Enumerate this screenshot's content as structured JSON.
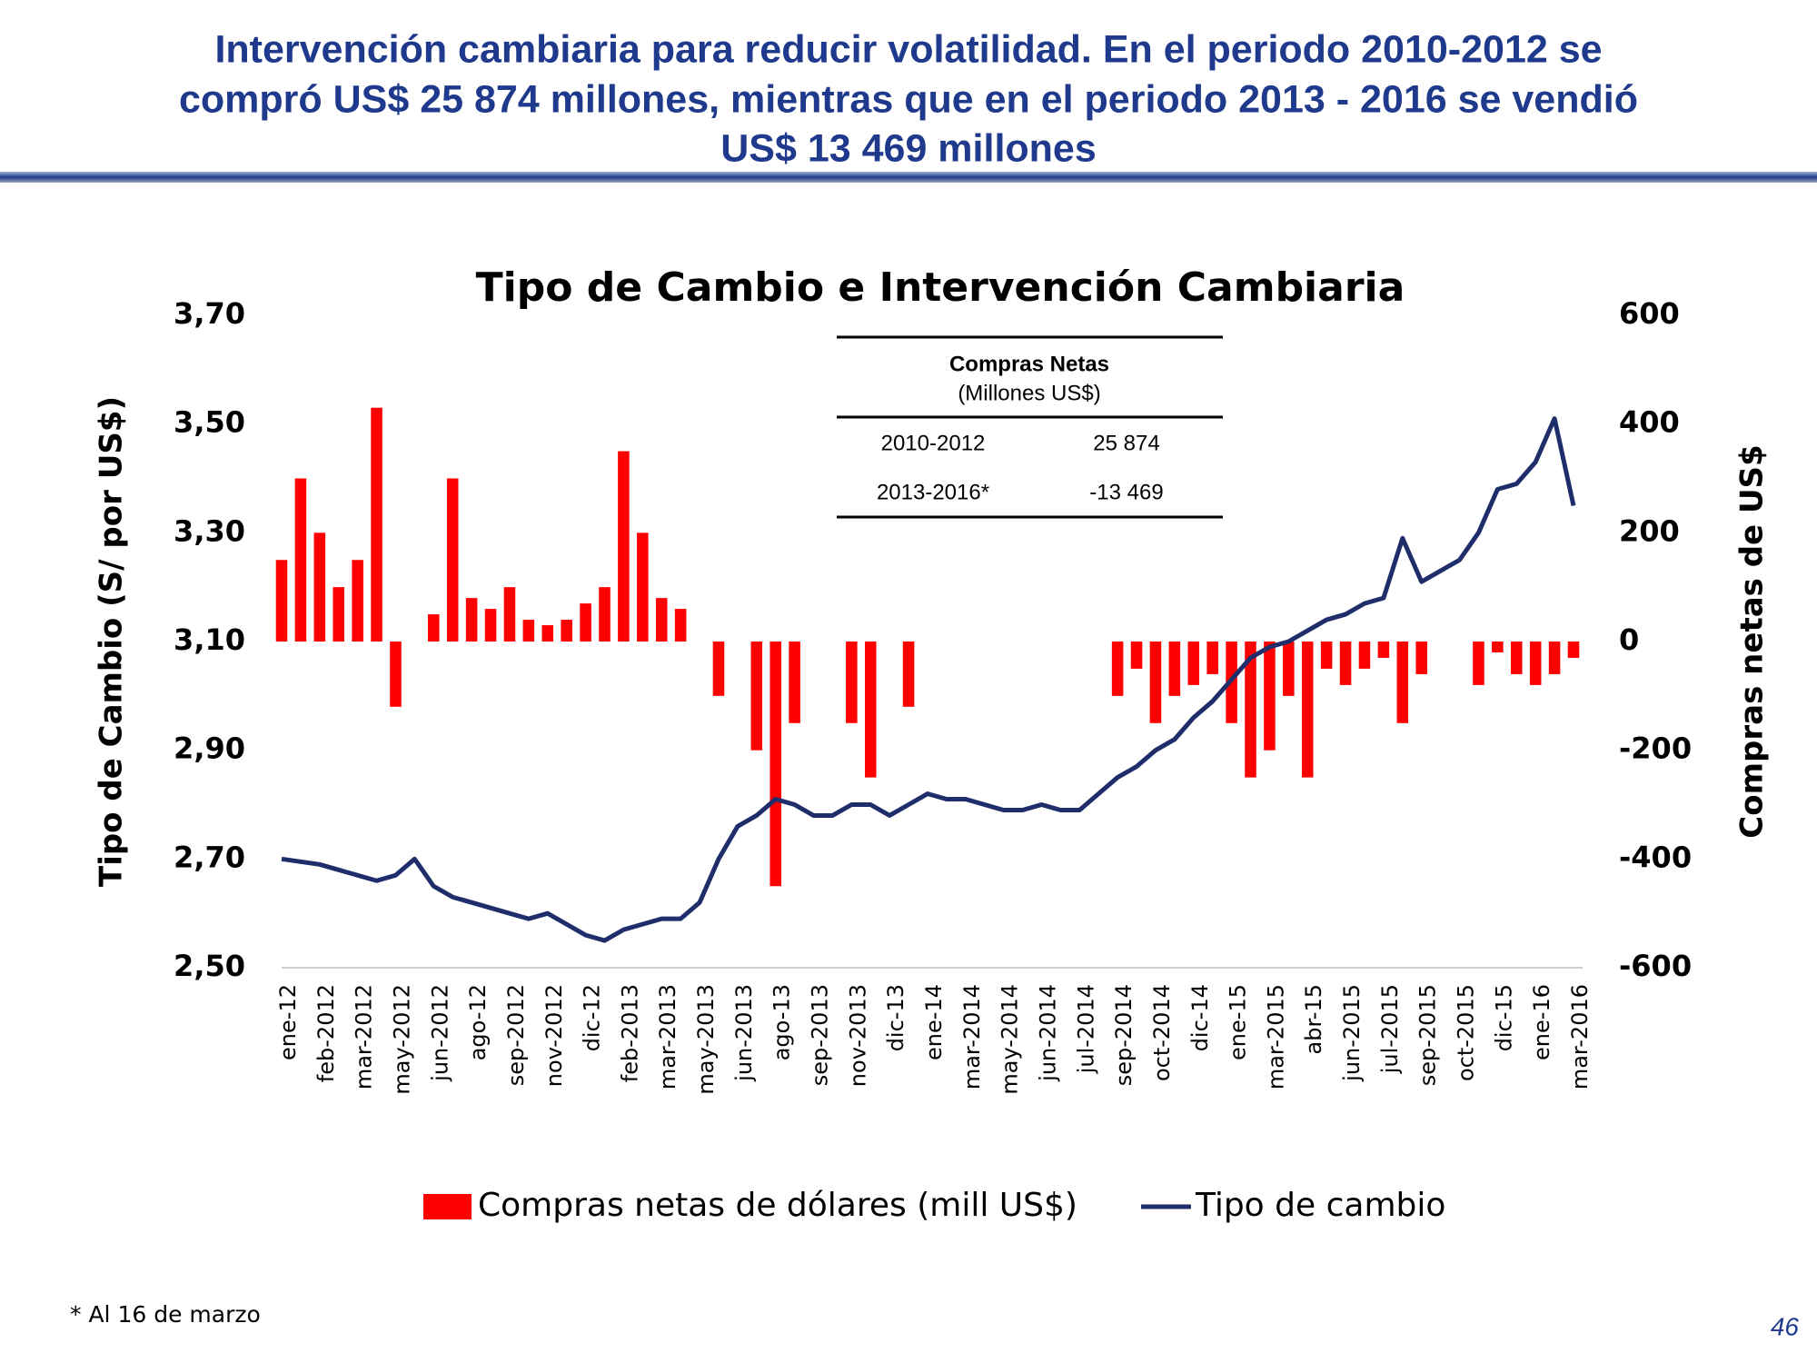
{
  "header": {
    "title": [
      "Intervención cambiaria para reducir volatilidad. En el periodo 2010-2012 se",
      "compró US$ 25 874 millones, mientras que en el periodo 2013 - 2016 se vendió",
      "US$ 13 469 millones"
    ]
  },
  "chart_data": {
    "type": "combo",
    "title": "Tipo de Cambio e Intervención Cambiaria",
    "y_label": "Tipo de Cambio (S/ por US$)",
    "y2_label": "Compras netas de US$",
    "categories": [
      "ene-12",
      null,
      "feb-2012",
      null,
      "mar-2012",
      null,
      "may-2012",
      null,
      "jun-2012",
      null,
      "ago-12",
      null,
      "sep-2012",
      null,
      "nov-2012",
      null,
      "dic-12",
      null,
      "feb-2013",
      null,
      "mar-2013",
      null,
      "may-2013",
      null,
      "jun-2013",
      null,
      "ago-13",
      null,
      "sep-2013",
      null,
      "nov-2013",
      null,
      "dic-13",
      null,
      "ene-14",
      null,
      "mar-2014",
      null,
      "may-2014",
      null,
      "jun-2014",
      null,
      "jul-2014",
      null,
      "sep-2014",
      null,
      "oct-2014",
      null,
      "dic-14",
      null,
      "ene-15",
      null,
      "mar-2015",
      null,
      "abr-15",
      null,
      "jun-2015",
      null,
      "jul-2015",
      null,
      "sep-2015",
      null,
      "oct-2015",
      null,
      "dic-15",
      null,
      "ene-16",
      null,
      "mar-2016"
    ],
    "series": [
      {
        "name": "Compras netas de dólares (mill US$)",
        "type": "bar",
        "axis": "y2",
        "color": "#ff0000",
        "values": [
          150,
          300,
          200,
          100,
          150,
          430,
          -120,
          0,
          50,
          300,
          80,
          60,
          100,
          40,
          30,
          40,
          70,
          100,
          350,
          200,
          80,
          60,
          0,
          -100,
          0,
          -200,
          -450,
          -150,
          0,
          0,
          -150,
          -250,
          0,
          -120,
          0,
          0,
          0,
          0,
          0,
          0,
          0,
          0,
          0,
          0,
          -100,
          -50,
          -150,
          -100,
          -80,
          -60,
          -150,
          -250,
          -200,
          -100,
          -250,
          -50,
          -80,
          -50,
          -30,
          -150,
          -60,
          0,
          0,
          -80,
          -20,
          -60,
          -80,
          -60,
          -30
        ]
      },
      {
        "name": "Tipo de cambio",
        "type": "line",
        "axis": "y",
        "color": "#1f2d6b",
        "values": [
          2.7,
          2.695,
          2.69,
          2.68,
          2.67,
          2.66,
          2.67,
          2.7,
          2.65,
          2.63,
          2.62,
          2.61,
          2.6,
          2.59,
          2.6,
          2.58,
          2.56,
          2.55,
          2.57,
          2.58,
          2.59,
          2.59,
          2.62,
          2.7,
          2.76,
          2.78,
          2.81,
          2.8,
          2.78,
          2.78,
          2.8,
          2.8,
          2.78,
          2.8,
          2.82,
          2.81,
          2.81,
          2.8,
          2.79,
          2.79,
          2.8,
          2.79,
          2.79,
          2.82,
          2.85,
          2.87,
          2.9,
          2.92,
          2.96,
          2.99,
          3.03,
          3.07,
          3.09,
          3.1,
          3.12,
          3.14,
          3.15,
          3.17,
          3.18,
          3.29,
          3.21,
          3.23,
          3.25,
          3.3,
          3.38,
          3.39,
          3.43,
          3.51,
          3.35
        ]
      }
    ],
    "ylim": [
      2.5,
      3.7
    ],
    "yticks": [
      {
        "value": 2.5,
        "label": "2,50"
      },
      {
        "value": 2.7,
        "label": "2,70"
      },
      {
        "value": 2.9,
        "label": "2,90"
      },
      {
        "value": 3.1,
        "label": "3,10"
      },
      {
        "value": 3.3,
        "label": "3,30"
      },
      {
        "value": 3.5,
        "label": "3,50"
      },
      {
        "value": 3.7,
        "label": "3,70"
      }
    ],
    "y2lim": [
      -600,
      600
    ],
    "y2ticks": [
      -600,
      -400,
      -200,
      0,
      200,
      400,
      600
    ],
    "legend": "bottom",
    "grid": false
  },
  "table": {
    "header": "Compras Netas",
    "subheader": "(Millones US$)",
    "rows": [
      [
        "2010-2012",
        "25 874"
      ],
      [
        "2013-2016*",
        "-13 469"
      ]
    ]
  },
  "footnote": "* Al 16 de marzo",
  "page_number": "46"
}
